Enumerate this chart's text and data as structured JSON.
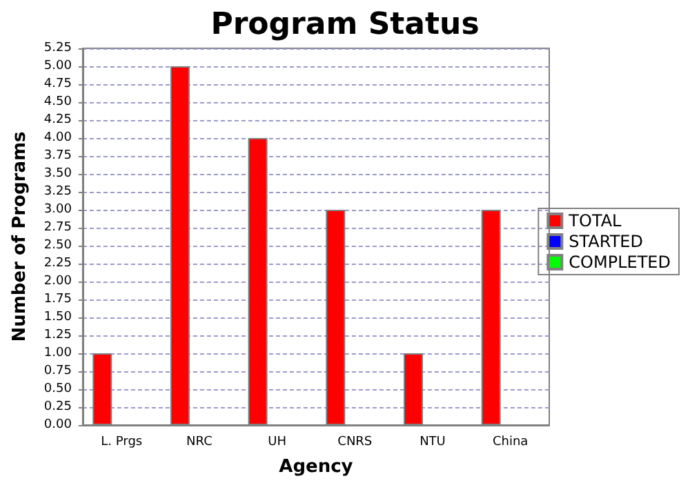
{
  "chart_data": {
    "type": "bar",
    "title": "Program Status",
    "xlabel": "Agency",
    "ylabel": "Number of Programs",
    "categories": [
      "L. Prgs",
      "NRC",
      "UH",
      "CNRS",
      "NTU",
      "China"
    ],
    "series": [
      {
        "name": "TOTAL",
        "color": "#ff0000",
        "values": [
          1,
          5,
          4,
          3,
          1,
          3
        ]
      },
      {
        "name": "STARTED",
        "color": "#0000ff",
        "values": [
          0,
          0,
          0,
          0,
          0,
          0
        ]
      },
      {
        "name": "COMPLETED",
        "color": "#00ff00",
        "values": [
          0,
          0,
          0,
          0,
          0,
          0
        ]
      }
    ],
    "ylim": [
      0,
      5.25
    ],
    "yticks": [
      {
        "value": 0,
        "label": "0.00"
      },
      {
        "value": 0.25,
        "label": "0.25"
      },
      {
        "value": 0.5,
        "label": "0.50"
      },
      {
        "value": 0.75,
        "label": "0.75"
      },
      {
        "value": 1,
        "label": "1.00"
      },
      {
        "value": 1.25,
        "label": "1.25"
      },
      {
        "value": 1.5,
        "label": "1.50"
      },
      {
        "value": 1.75,
        "label": "1.75"
      },
      {
        "value": 2,
        "label": "2.00"
      },
      {
        "value": 2.25,
        "label": "2.25"
      },
      {
        "value": 2.5,
        "label": "2.50"
      },
      {
        "value": 2.75,
        "label": "2.75"
      },
      {
        "value": 3,
        "label": "3.00"
      },
      {
        "value": 3.25,
        "label": "3.25"
      },
      {
        "value": 3.5,
        "label": "3.50"
      },
      {
        "value": 3.75,
        "label": "3.75"
      },
      {
        "value": 4,
        "label": "4.00"
      },
      {
        "value": 4.25,
        "label": "4.25"
      },
      {
        "value": 4.5,
        "label": "4.50"
      },
      {
        "value": 4.75,
        "label": "4.75"
      },
      {
        "value": 5,
        "label": "5.00"
      },
      {
        "value": 5.25,
        "label": "5.25"
      }
    ],
    "grid": "y",
    "legend": "right"
  }
}
